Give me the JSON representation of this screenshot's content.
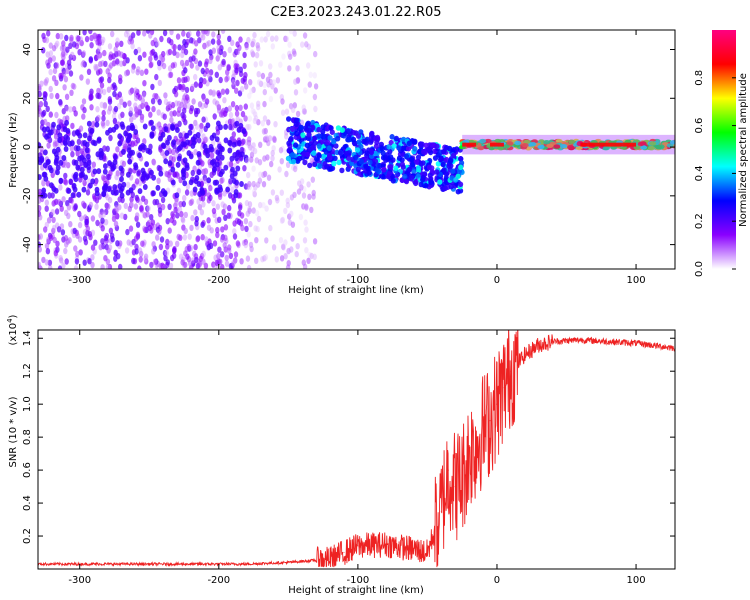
{
  "title": "C2E3.2023.243.01.22.R05",
  "chart_data": [
    {
      "type": "heatmap",
      "xlabel": "Height of straight line (km)",
      "ylabel": "Frequency (Hz)",
      "xlim": [
        -330,
        128
      ],
      "ylim": [
        -50,
        48
      ],
      "xticks": [
        -300,
        -200,
        -100,
        0,
        100
      ],
      "yticks": [
        -40,
        -20,
        0,
        20,
        40
      ],
      "xtick_labels": [
        "-300",
        "-200",
        "-100",
        "0",
        "100"
      ],
      "ytick_labels": [
        "-40",
        "-20",
        "0",
        "20",
        "40"
      ],
      "colorbar": {
        "label": "Normalized spectral amplitude",
        "range": [
          0,
          1
        ],
        "ticks": [
          0.0,
          0.2,
          0.4,
          0.6,
          0.8
        ],
        "tick_labels": [
          "0.0",
          "0.2",
          "0.4",
          "0.6",
          "0.8"
        ],
        "colors": [
          "#ffffff",
          "#8a00ff",
          "#0000ff",
          "#00ffff",
          "#00ff00",
          "#ffff00",
          "#ff0000",
          "#ff0080"
        ]
      },
      "regions": [
        {
          "x_range": [
            -330,
            -180
          ],
          "f_range": [
            -50,
            48
          ],
          "amplitude": [
            0.05,
            0.2
          ],
          "note_color": "#8a00ff"
        },
        {
          "x_range": [
            -180,
            -130
          ],
          "f_range": [
            -50,
            48
          ],
          "amplitude": [
            0.02,
            0.1
          ],
          "note_color": "#c9a0ff"
        },
        {
          "x_range": [
            -150,
            -25
          ],
          "f_center": [
            3,
            -10
          ],
          "amplitude": [
            0.25,
            0.45
          ],
          "note_color": "#00ffff"
        },
        {
          "x_range": [
            -25,
            128
          ],
          "f_center": [
            1,
            1
          ],
          "amplitude": [
            0.4,
            0.9
          ],
          "note_color": "#00ff00"
        }
      ]
    },
    {
      "type": "line",
      "xlabel": "Height of straight line (km)",
      "ylabel": "SNR (10 * v/v)",
      "yscale_label": "(x10",
      "yscale_exp": "4",
      "yscale_close": ")",
      "xlim": [
        -330,
        128
      ],
      "ylim": [
        0.0,
        1.45
      ],
      "xticks": [
        -300,
        -200,
        -100,
        0,
        100
      ],
      "yticks": [
        0.2,
        0.4,
        0.6,
        0.8,
        1.0,
        1.2,
        1.4
      ],
      "xtick_labels": [
        "-300",
        "-200",
        "-100",
        "0",
        "100"
      ],
      "ytick_labels": [
        "0.2",
        "0.4",
        "0.6",
        "0.8",
        "1.0",
        "1.2",
        "1.4"
      ],
      "color": "#ee2222",
      "series": [
        {
          "x": [
            -330,
            -250,
            -180,
            -150,
            -120,
            -110,
            -100,
            -80,
            -60,
            -50,
            -40,
            -35,
            -30,
            -25,
            -20,
            -15,
            -10,
            -5,
            0,
            5,
            10,
            20,
            30,
            40,
            60,
            80,
            100,
            128
          ],
          "y": [
            0.03,
            0.03,
            0.03,
            0.04,
            0.06,
            0.1,
            0.14,
            0.15,
            0.12,
            0.1,
            0.35,
            0.6,
            0.5,
            0.55,
            0.7,
            0.75,
            0.85,
            0.9,
            1.0,
            1.1,
            1.2,
            1.3,
            1.36,
            1.38,
            1.39,
            1.38,
            1.37,
            1.34
          ]
        }
      ]
    }
  ]
}
